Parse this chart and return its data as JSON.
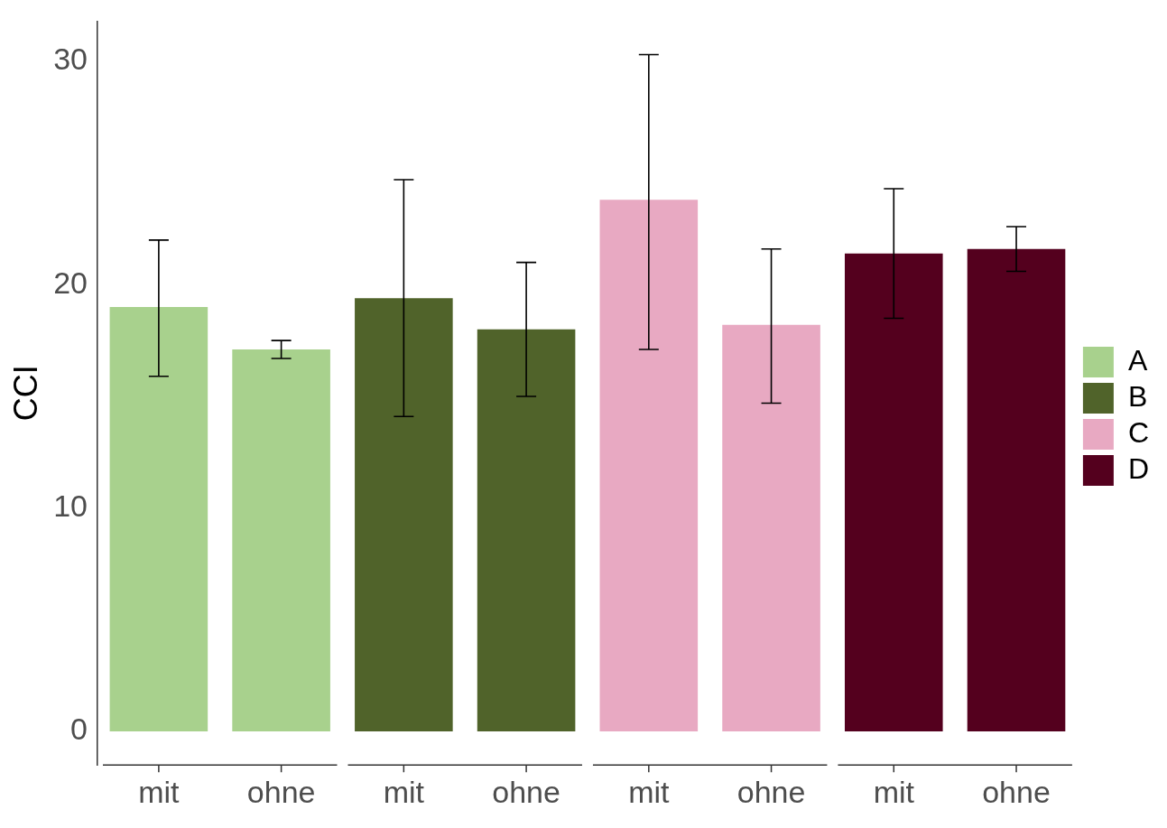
{
  "chart_data": {
    "type": "bar",
    "ylabel": "CCI",
    "categories": [
      "mit",
      "ohne",
      "mit",
      "ohne",
      "mit",
      "ohne",
      "mit",
      "ohne"
    ],
    "series": [
      {
        "name": "A",
        "color": "#a8d18d",
        "values": [
          19.0,
          17.1,
          null,
          null,
          null,
          null,
          null,
          null
        ],
        "errors": [
          [
            15.9,
            22.0
          ],
          [
            16.7,
            17.5
          ],
          null,
          null,
          null,
          null,
          null,
          null
        ]
      },
      {
        "name": "B",
        "color": "#50632a",
        "values": [
          null,
          null,
          19.4,
          18.0,
          null,
          null,
          null,
          null
        ],
        "errors": [
          null,
          null,
          [
            14.1,
            24.7
          ],
          [
            15.0,
            21.0
          ],
          null,
          null,
          null,
          null
        ]
      },
      {
        "name": "C",
        "color": "#e8a9c2",
        "values": [
          null,
          null,
          null,
          null,
          23.8,
          18.2,
          null,
          null
        ],
        "errors": [
          null,
          null,
          null,
          null,
          [
            17.1,
            30.3
          ],
          [
            14.7,
            21.6
          ],
          null,
          null
        ]
      },
      {
        "name": "D",
        "color": "#54001e",
        "values": [
          null,
          null,
          null,
          null,
          null,
          null,
          21.4,
          21.6
        ],
        "errors": [
          null,
          null,
          null,
          null,
          null,
          null,
          [
            18.5,
            24.3
          ],
          [
            20.6,
            22.6
          ]
        ]
      }
    ],
    "ylim": [
      -1.5,
      31.8
    ],
    "yticks": [
      0,
      10,
      20,
      30
    ],
    "grid": false,
    "legend": "right"
  }
}
